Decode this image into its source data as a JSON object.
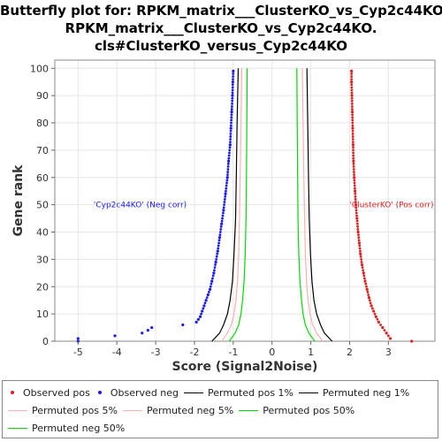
{
  "title_lines": [
    "Butterfly plot for: RPKM_matrix___ClusterKO_vs_Cyp2c44KO.",
    "RPKM_matrix___ClusterKO_vs_Cyp2c44KO.",
    "cls#ClusterKO_versus_Cyp2c44KO"
  ],
  "colors": {
    "observed_pos": "#e02020",
    "observed_neg": "#1a1aff",
    "permuted_1": "#000000",
    "permuted_5": "#ffb0b0",
    "permuted_50": "#00dd00",
    "grid": "#e6e6e6"
  },
  "legend": {
    "observed_pos": "Observed pos",
    "observed_neg": "Observed neg",
    "permuted_pos_1": "Permuted pos 1%",
    "permuted_neg_1": "Permuted neg 1%",
    "permuted_pos_5": "Permuted pos 5%",
    "permuted_neg_5": "Permuted neg 5%",
    "permuted_pos_50": "Permuted pos 50%",
    "permuted_neg_50": "Permuted neg 50%"
  },
  "chart_data": {
    "type": "scatter",
    "xlabel": "Score (Signal2Noise)",
    "ylabel": "Gene rank",
    "xlim": [
      -5.6,
      4.2
    ],
    "ylim": [
      0,
      103
    ],
    "xticks": [
      -5,
      -4,
      -3,
      -2,
      -1,
      0,
      1,
      2,
      3
    ],
    "yticks": [
      0,
      10,
      20,
      30,
      40,
      50,
      60,
      70,
      80,
      90,
      100
    ],
    "grid": true,
    "legend_position": "bottom",
    "annotations": [
      {
        "text": "'Cyp2c44KO' (Neg corr)",
        "x": -4.6,
        "y": 50,
        "color": "#1a1aff"
      },
      {
        "text": "'ClusterKO' (Pos corr)",
        "x": 3.8,
        "y": 50,
        "color": "#e02020"
      }
    ],
    "observed_pos": [
      [
        3.6,
        0
      ],
      [
        3.05,
        1
      ],
      [
        2.95,
        3
      ],
      [
        2.85,
        5
      ],
      [
        2.75,
        7
      ],
      [
        2.68,
        9
      ],
      [
        2.62,
        11
      ],
      [
        2.56,
        13
      ],
      [
        2.5,
        16
      ],
      [
        2.45,
        19
      ],
      [
        2.4,
        22
      ],
      [
        2.36,
        25
      ],
      [
        2.32,
        28
      ],
      [
        2.28,
        32
      ],
      [
        2.25,
        36
      ],
      [
        2.22,
        40
      ],
      [
        2.19,
        45
      ],
      [
        2.16,
        50
      ],
      [
        2.14,
        55
      ],
      [
        2.12,
        60
      ],
      [
        2.1,
        66
      ],
      [
        2.09,
        72
      ],
      [
        2.08,
        78
      ],
      [
        2.07,
        84
      ],
      [
        2.06,
        90
      ],
      [
        2.05,
        95
      ],
      [
        2.05,
        99
      ]
    ],
    "observed_neg": [
      [
        -5.0,
        0
      ],
      [
        -5.0,
        1
      ],
      [
        -4.05,
        2
      ],
      [
        -3.35,
        3
      ],
      [
        -3.2,
        4
      ],
      [
        -3.1,
        5
      ],
      [
        -2.3,
        6
      ],
      [
        -1.95,
        7
      ],
      [
        -1.9,
        8
      ],
      [
        -1.85,
        9
      ],
      [
        -1.8,
        11
      ],
      [
        -1.75,
        13
      ],
      [
        -1.7,
        15
      ],
      [
        -1.65,
        17
      ],
      [
        -1.6,
        19
      ],
      [
        -1.55,
        22
      ],
      [
        -1.5,
        25
      ],
      [
        -1.45,
        29
      ],
      [
        -1.4,
        33
      ],
      [
        -1.35,
        38
      ],
      [
        -1.3,
        43
      ],
      [
        -1.25,
        48
      ],
      [
        -1.2,
        54
      ],
      [
        -1.15,
        60
      ],
      [
        -1.12,
        66
      ],
      [
        -1.08,
        72
      ],
      [
        -1.06,
        78
      ],
      [
        -1.04,
        84
      ],
      [
        -1.02,
        90
      ],
      [
        -1.01,
        95
      ],
      [
        -1.0,
        99
      ]
    ],
    "series": [
      {
        "name": "Permuted pos 1%",
        "side": "pos",
        "color": "#000000",
        "points": [
          [
            1.55,
            0
          ],
          [
            1.35,
            3
          ],
          [
            1.25,
            6
          ],
          [
            1.15,
            10
          ],
          [
            1.08,
            15
          ],
          [
            1.03,
            22
          ],
          [
            0.99,
            32
          ],
          [
            0.96,
            45
          ],
          [
            0.94,
            60
          ],
          [
            0.92,
            80
          ],
          [
            0.9,
            100
          ]
        ]
      },
      {
        "name": "Permuted neg 1%",
        "side": "neg",
        "color": "#000000",
        "points": [
          [
            -1.55,
            0
          ],
          [
            -1.35,
            3
          ],
          [
            -1.25,
            6
          ],
          [
            -1.15,
            10
          ],
          [
            -1.08,
            15
          ],
          [
            -1.02,
            22
          ],
          [
            -0.98,
            32
          ],
          [
            -0.94,
            45
          ],
          [
            -0.92,
            60
          ],
          [
            -0.9,
            80
          ],
          [
            -0.87,
            100
          ]
        ]
      },
      {
        "name": "Permuted pos 5%",
        "side": "pos",
        "color": "#ffb0b0",
        "points": [
          [
            1.3,
            0
          ],
          [
            1.15,
            3
          ],
          [
            1.05,
            6
          ],
          [
            0.98,
            10
          ],
          [
            0.93,
            15
          ],
          [
            0.89,
            22
          ],
          [
            0.86,
            32
          ],
          [
            0.84,
            45
          ],
          [
            0.82,
            60
          ],
          [
            0.8,
            80
          ],
          [
            0.78,
            100
          ]
        ]
      },
      {
        "name": "Permuted neg 5%",
        "side": "neg",
        "color": "#ffb0b0",
        "points": [
          [
            -1.3,
            0
          ],
          [
            -1.15,
            3
          ],
          [
            -1.05,
            6
          ],
          [
            -0.98,
            10
          ],
          [
            -0.93,
            15
          ],
          [
            -0.89,
            22
          ],
          [
            -0.86,
            32
          ],
          [
            -0.84,
            45
          ],
          [
            -0.82,
            60
          ],
          [
            -0.8,
            80
          ],
          [
            -0.78,
            100
          ]
        ]
      },
      {
        "name": "Permuted pos 50%",
        "side": "pos",
        "color": "#00dd00",
        "points": [
          [
            1.1,
            0
          ],
          [
            0.95,
            3
          ],
          [
            0.86,
            6
          ],
          [
            0.8,
            10
          ],
          [
            0.76,
            15
          ],
          [
            0.72,
            22
          ],
          [
            0.69,
            32
          ],
          [
            0.67,
            45
          ],
          [
            0.66,
            60
          ],
          [
            0.65,
            80
          ],
          [
            0.64,
            100
          ]
        ]
      },
      {
        "name": "Permuted neg 50%",
        "side": "neg",
        "color": "#00dd00",
        "points": [
          [
            -1.1,
            0
          ],
          [
            -0.95,
            3
          ],
          [
            -0.86,
            6
          ],
          [
            -0.8,
            10
          ],
          [
            -0.76,
            15
          ],
          [
            -0.72,
            22
          ],
          [
            -0.69,
            32
          ],
          [
            -0.67,
            45
          ],
          [
            -0.66,
            60
          ],
          [
            -0.65,
            80
          ],
          [
            -0.64,
            100
          ]
        ]
      }
    ]
  }
}
